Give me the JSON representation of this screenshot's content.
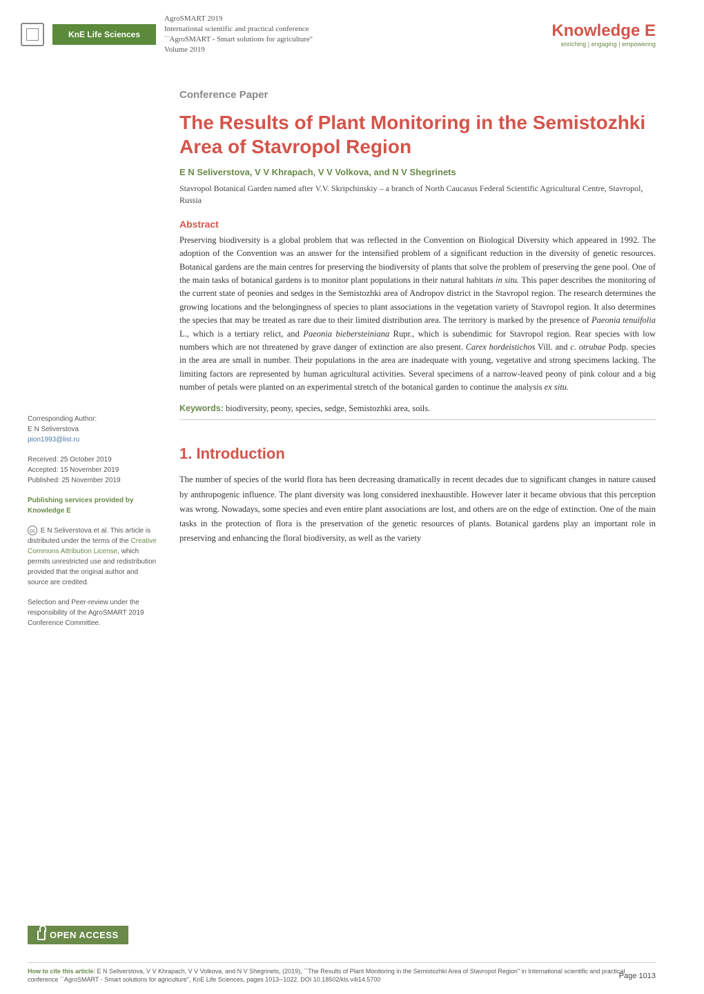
{
  "header": {
    "kne_logo_text": "KnE Life Sciences",
    "conf_line1": "AgroSMART 2019",
    "conf_line2": "International scientific and practical conference",
    "conf_line3": "``AgroSMART - Smart solutions for agriculture''",
    "conf_line4": "Volume 2019",
    "ke_brand": "Knowledge E",
    "ke_tagline": "enriching | engaging | empowering"
  },
  "paper": {
    "type_label": "Conference Paper",
    "title": "The Results of Plant Monitoring in the Semistozhki Area of Stavropol Region",
    "authors": "E N Seliverstova, V V Khrapach, V V Volkova, and N V Shegrinets",
    "affiliation": "Stavropol Botanical Garden named after V.V. Skripchinskiy – a branch of North Caucasus Federal Scientific Agricultural Centre, Stavropol, Russia",
    "abstract_label": "Abstract",
    "abstract_html": "Preserving biodiversity is a global problem that was reflected in the Convention on Biological Diversity which appeared in 1992. The adoption of the Convention was an answer for the intensified problem of a significant reduction in the diversity of genetic resources. Botanical gardens are the main centres for preserving the biodiversity of plants that solve the problem of preserving the gene pool. One of the main tasks of botanical gardens is to monitor plant populations in their natural habitats <em>in situ.</em> This paper describes the monitoring of the current state of peonies and sedges in the Semistozhki area of Andropov district in the Stavropol region. The research determines the growing locations and the belongingness of species to plant associations in the vegetation variety of Stavropol region. It also determines the species that may be treated as rare due to their limited distribution area. The territory is marked by the presence of <em>Paeonia tenuifolia</em> L., which is a tertiary relict, and <em>Paeonia biebersteiniana</em> Rupr., which is subendimic for Stavropol region. Rear species with low numbers which are not threatened by grave danger of extinction are also present. <em>Carex hordeistichos</em> Vill. and <em>с. otrubae</em> Podp. species in the area are small in number. Their populations in the area are inadequate with young, vegetative and strong specimens lacking. The limiting factors are represented by human agricultural activities. Several specimens of a narrow-leaved peony of pink colour and a big number of petals were planted on an experimental stretch of the botanical garden to continue the analysis <em>ex situ.</em>",
    "keywords_label": "Keywords:",
    "keywords_text": " biodiversity, peony, species, sedge, Semistozhki area, soils.",
    "intro_heading": "1. Introduction",
    "intro_text": "The number of species of the world flora has been decreasing dramatically in recent decades due to significant changes in nature caused by anthropogenic influence. The plant diversity was long considered inexhaustible. However later it became obvious that this perception was wrong. Nowadays, some species and even entire plant associations are lost, and others are on the edge of extinction. One of the main tasks in the protection of flora is the preservation of the genetic resources of plants. Botanical gardens play an important role in preserving and enhancing the floral biodiversity, as well as the variety"
  },
  "sidebar": {
    "corr_label": "Corresponding Author:",
    "corr_name": "E N Seliverstova",
    "corr_email": "pion1993@list.ru",
    "received": "Received: 25 October 2019",
    "accepted": "Accepted: 15 November 2019",
    "published": "Published: 25 November 2019",
    "pub_services_1": "Publishing services provided by",
    "pub_services_2": "Knowledge E",
    "license_pre": "E N Seliverstova et al. This article is distributed under the terms of the ",
    "license_link": "Creative Commons Attribution License",
    "license_post": ", which permits unrestricted use and redistribution provided that the original author and source are credited.",
    "selection": "Selection and Peer-review under the responsibility of the AgroSMART 2019 Conference Committee."
  },
  "open_access_label": "OPEN ACCESS",
  "footer": {
    "cite_label": "How to cite this article",
    "cite_text": ": E N Seliverstova, V V Khrapach, V V Volkova, and N V Shegrinets, (2019), ``The Results of Plant Monitoring in the Semistozhki Area of Stavropol Region'' in International scientific and practical conference ``AgroSMART - Smart solutions for agriculture'', KnE Life Sciences, pages 1013--1022. DOI 10.18502/kls.v4i14.5700",
    "page_number": "Page 1013"
  },
  "colors": {
    "brand_red": "#d4544a",
    "brand_green": "#6a8a4a",
    "text_gray": "#555555",
    "rule_gray": "#cccccc",
    "link_blue": "#4a7aa8"
  }
}
